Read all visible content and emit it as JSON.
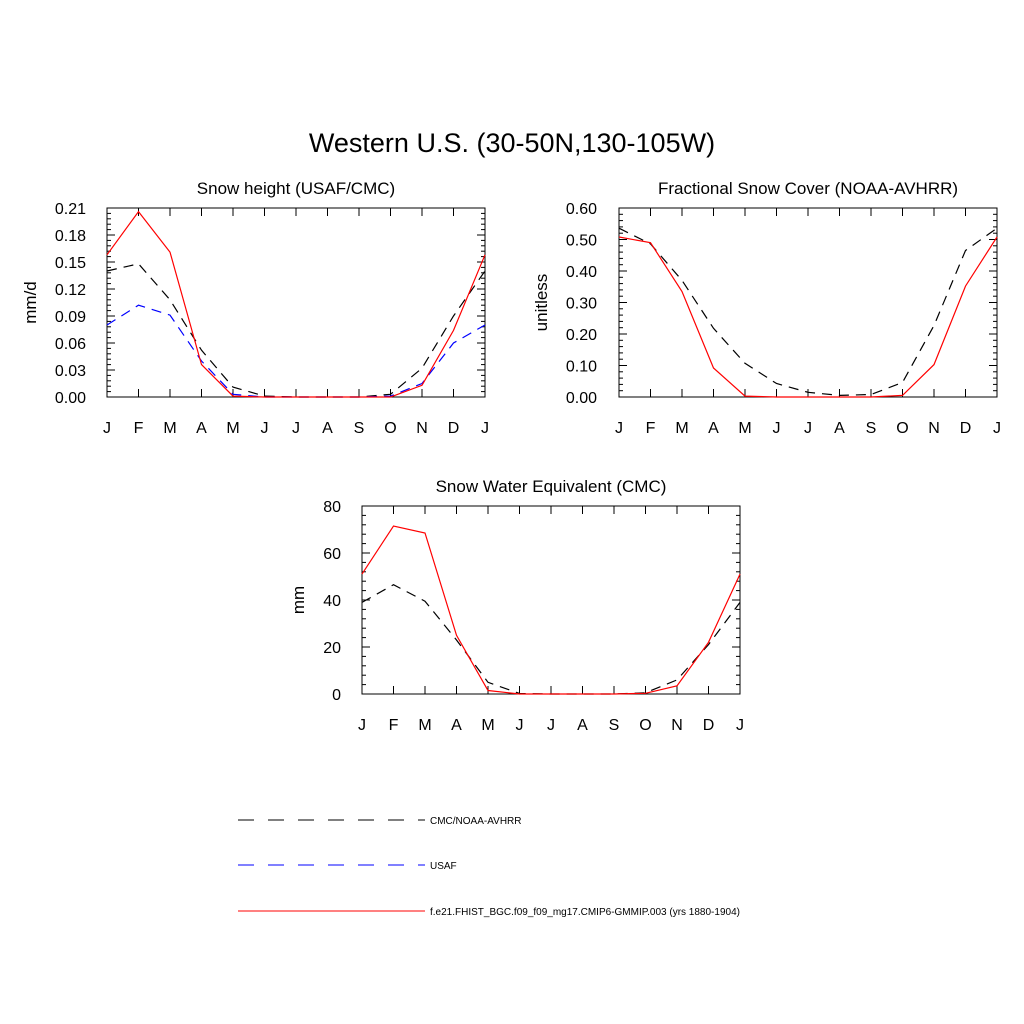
{
  "title": "Western U.S. (30-50N,130-105W)",
  "months": [
    "J",
    "F",
    "M",
    "A",
    "M",
    "J",
    "J",
    "A",
    "S",
    "O",
    "N",
    "D",
    "J"
  ],
  "colors": {
    "obs": "#000000",
    "usaf": "#0000ff",
    "model": "#ff0000"
  },
  "legend": [
    {
      "label": "CMC/NOAA-AVHRR",
      "color": "#000000",
      "style": "dashed"
    },
    {
      "label": "USAF",
      "color": "#0000ff",
      "style": "dashed"
    },
    {
      "label": "f.e21.FHIST_BGC.f09_f09_mg17.CMIP6-GMMIP.003 (yrs 1880-1904)",
      "color": "#ff0000",
      "style": "solid"
    }
  ],
  "chart_data": [
    {
      "type": "line",
      "title": "Snow height (USAF/CMC)",
      "xlabel": "",
      "ylabel": "mm/d",
      "ylim": [
        0,
        0.21
      ],
      "yticks": [
        0.0,
        0.03,
        0.06,
        0.09,
        0.12,
        0.15,
        0.18,
        0.21
      ],
      "ytick_labels": [
        "0.00",
        "0.03",
        "0.06",
        "0.09",
        "0.12",
        "0.15",
        "0.18",
        "0.21"
      ],
      "categories": [
        "J",
        "F",
        "M",
        "A",
        "M",
        "J",
        "J",
        "A",
        "S",
        "O",
        "N",
        "D",
        "J"
      ],
      "series": [
        {
          "name": "CMC/NOAA-AVHRR",
          "color": "#000000",
          "dash": true,
          "values": [
            0.14,
            0.148,
            0.108,
            0.052,
            0.011,
            0.001,
            0.0,
            0.0,
            0.0,
            0.003,
            0.032,
            0.09,
            0.14
          ]
        },
        {
          "name": "USAF",
          "color": "#0000ff",
          "dash": true,
          "values": [
            0.08,
            0.102,
            0.091,
            0.04,
            0.003,
            0.0,
            0.0,
            0.0,
            0.0,
            0.001,
            0.015,
            0.06,
            0.08
          ]
        },
        {
          "name": "f.e21.FHIST_BGC.f09_f09_mg17.CMIP6-GMMIP.003 (yrs 1880-1904)",
          "color": "#ff0000",
          "dash": false,
          "values": [
            0.158,
            0.206,
            0.161,
            0.036,
            0.001,
            0.0,
            0.0,
            0.0,
            0.0,
            0.0,
            0.013,
            0.074,
            0.158
          ]
        }
      ]
    },
    {
      "type": "line",
      "title": "Fractional Snow Cover (NOAA-AVHRR)",
      "xlabel": "",
      "ylabel": "unitless",
      "ylim": [
        0,
        0.6
      ],
      "yticks": [
        0.0,
        0.1,
        0.2,
        0.3,
        0.4,
        0.5,
        0.6
      ],
      "ytick_labels": [
        "0.00",
        "0.10",
        "0.20",
        "0.30",
        "0.40",
        "0.50",
        "0.60"
      ],
      "categories": [
        "J",
        "F",
        "M",
        "A",
        "M",
        "J",
        "J",
        "A",
        "S",
        "O",
        "N",
        "D",
        "J"
      ],
      "series": [
        {
          "name": "CMC/NOAA-AVHRR",
          "color": "#000000",
          "dash": true,
          "values": [
            0.536,
            0.486,
            0.37,
            0.218,
            0.107,
            0.043,
            0.015,
            0.005,
            0.008,
            0.046,
            0.227,
            0.465,
            0.536
          ]
        },
        {
          "name": "f.e21.FHIST_BGC.f09_f09_mg17.CMIP6-GMMIP.003 (yrs 1880-1904)",
          "color": "#ff0000",
          "dash": false,
          "values": [
            0.508,
            0.49,
            0.335,
            0.092,
            0.003,
            0.0,
            0.0,
            0.0,
            0.0,
            0.005,
            0.103,
            0.352,
            0.508
          ]
        }
      ]
    },
    {
      "type": "line",
      "title": "Snow Water Equivalent (CMC)",
      "xlabel": "",
      "ylabel": "mm",
      "ylim": [
        0,
        80
      ],
      "yticks": [
        0,
        20,
        40,
        60,
        80
      ],
      "ytick_labels": [
        "0",
        "20",
        "40",
        "60",
        "80"
      ],
      "categories": [
        "J",
        "F",
        "M",
        "A",
        "M",
        "J",
        "J",
        "A",
        "S",
        "O",
        "N",
        "D",
        "J"
      ],
      "series": [
        {
          "name": "CMC/NOAA-AVHRR",
          "color": "#000000",
          "dash": true,
          "values": [
            39,
            46.5,
            39.5,
            23,
            5,
            0.2,
            0,
            0,
            0,
            0.5,
            6,
            21,
            39
          ]
        },
        {
          "name": "f.e21.FHIST_BGC.f09_f09_mg17.CMIP6-GMMIP.003 (yrs 1880-1904)",
          "color": "#ff0000",
          "dash": false,
          "values": [
            51,
            71.5,
            68.5,
            25,
            1.5,
            0,
            0,
            0,
            0,
            0.3,
            3.5,
            22,
            51
          ]
        }
      ]
    }
  ]
}
